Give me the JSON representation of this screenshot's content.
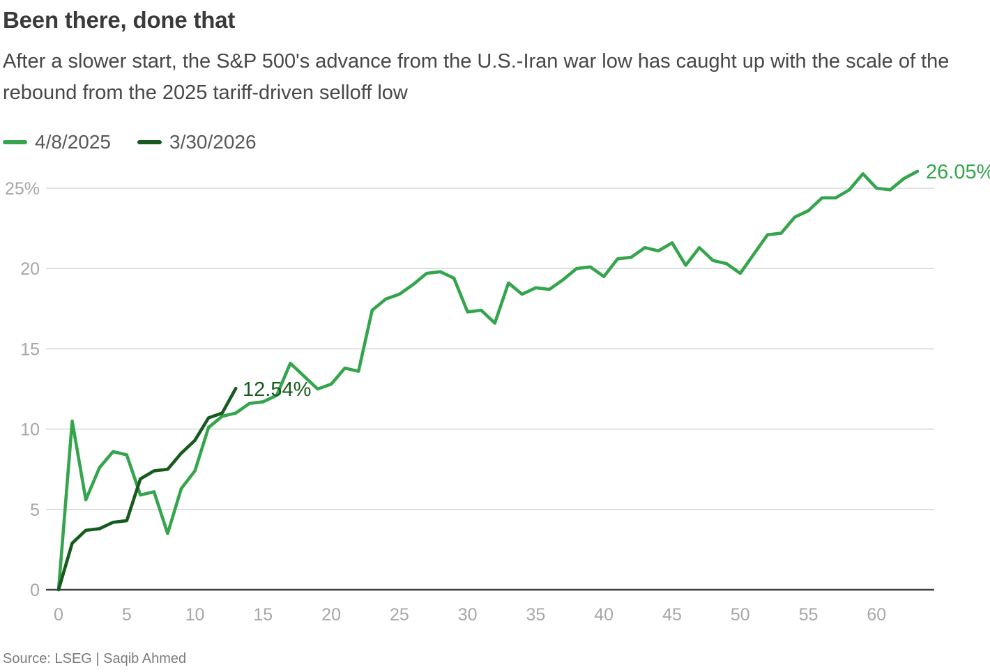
{
  "header": {
    "title": "Been there, done that",
    "subtitle": "After a slower start, the S&P 500's advance from the U.S.-Iran war low has caught up with the scale of the rebound from the 2025 tariff-driven selloff low"
  },
  "footer": {
    "source": "Source: LSEG | Saqib Ahmed"
  },
  "colors": {
    "grid": "#d9d9d9",
    "axis": "#3f3f3f",
    "tick_text": "#a7a7a7"
  },
  "chart_data": {
    "type": "line",
    "title": "Been there, done that",
    "subtitle": "After a slower start, the S&P 500's advance from the U.S.-Iran war low has caught up with the scale of the rebound from the 2025 tariff-driven selloff low",
    "xlabel": "",
    "ylabel": "",
    "grid": "horizontal",
    "legend_position": "top-left",
    "xlim": [
      0,
      64.5
    ],
    "ylim": [
      0,
      26.8
    ],
    "x_ticks": [
      0,
      5,
      10,
      15,
      20,
      25,
      30,
      35,
      40,
      45,
      50,
      55,
      60
    ],
    "y_ticks": [
      {
        "value": 0,
        "label": "0"
      },
      {
        "value": 5,
        "label": "5"
      },
      {
        "value": 10,
        "label": "10"
      },
      {
        "value": 15,
        "label": "15"
      },
      {
        "value": 20,
        "label": "20"
      },
      {
        "value": 25,
        "label": "25%"
      }
    ],
    "series": [
      {
        "name": "4/8/2025",
        "color": "#35a54d",
        "end_label": "26.05%",
        "values": [
          0,
          10.5,
          5.6,
          7.6,
          8.6,
          8.4,
          5.9,
          6.1,
          3.5,
          6.3,
          7.4,
          10.1,
          10.8,
          11.0,
          11.6,
          11.7,
          12.1,
          14.1,
          13.3,
          12.5,
          12.8,
          13.8,
          13.6,
          17.4,
          18.1,
          18.4,
          19.0,
          19.7,
          19.8,
          19.4,
          17.3,
          17.4,
          16.6,
          19.1,
          18.4,
          18.8,
          18.7,
          19.3,
          20.0,
          20.1,
          19.5,
          20.6,
          20.7,
          21.3,
          21.1,
          21.6,
          20.2,
          21.3,
          20.5,
          20.3,
          19.7,
          20.9,
          22.1,
          22.2,
          23.2,
          23.6,
          24.4,
          24.4,
          24.9,
          25.9,
          25.0,
          24.9,
          25.6,
          26.05
        ]
      },
      {
        "name": "3/30/2026",
        "color": "#175a1e",
        "end_label": "12.54%",
        "values": [
          0,
          2.9,
          3.7,
          3.8,
          4.2,
          4.3,
          6.9,
          7.4,
          7.5,
          8.5,
          9.3,
          10.7,
          11.0,
          12.54
        ]
      }
    ]
  }
}
